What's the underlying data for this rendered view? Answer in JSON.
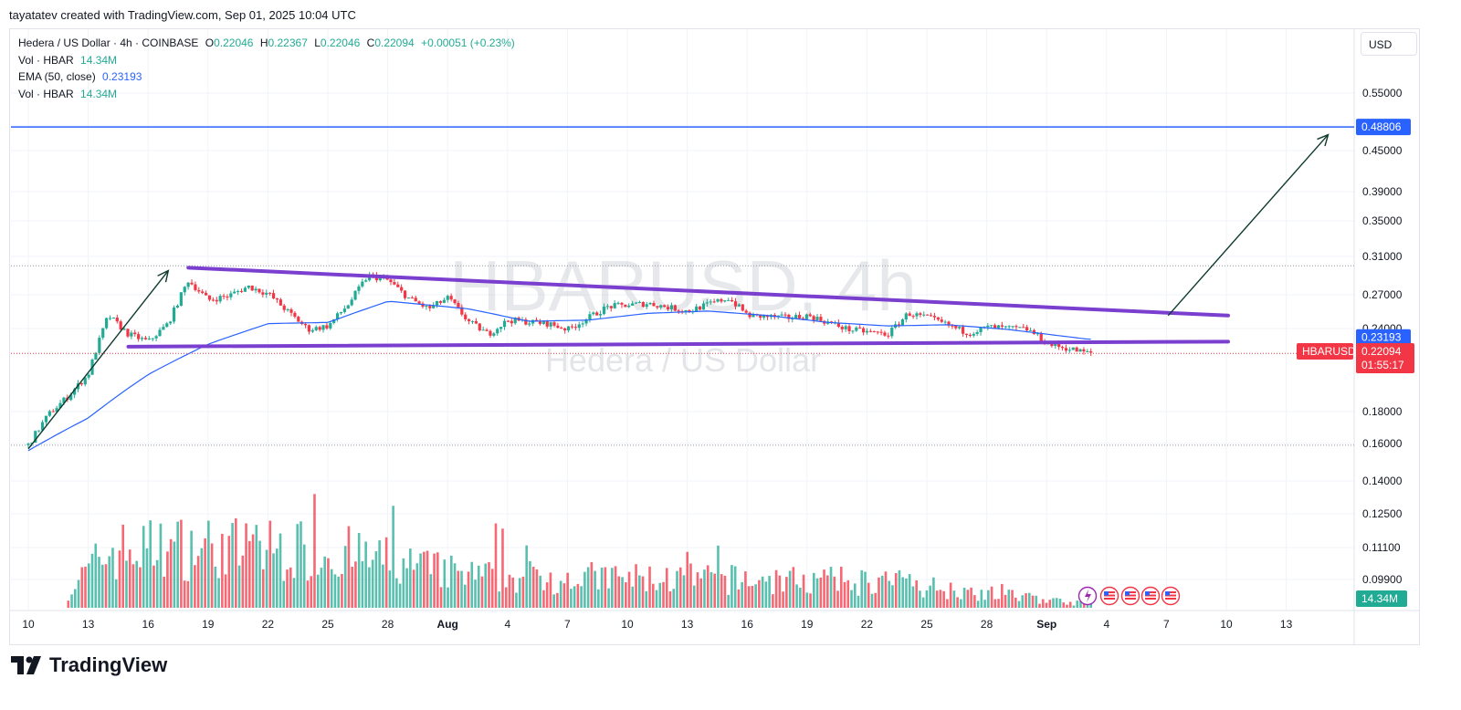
{
  "header": {
    "caption": "tayatatev created with TradingView.com, Sep 01, 2025 10:04 UTC"
  },
  "legend": {
    "symbol": "Hedera / US Dollar · 4h · COINBASE",
    "o_label": "O",
    "o_value": "0.22046",
    "h_label": "H",
    "h_value": "0.22367",
    "l_label": "L",
    "l_value": "0.22046",
    "c_label": "C",
    "c_value": "0.22094",
    "change": "+0.00051 (+0.23%)",
    "vol_label": "Vol · HBAR",
    "vol_value": "14.34M",
    "ema_label": "EMA (50, close)",
    "ema_value": "0.23193",
    "vol2_label": "Vol · HBAR",
    "vol2_value": "14.34M"
  },
  "currency": "USD",
  "watermark": {
    "symbol": "HBARUSD, 4h",
    "name": "Hedera / US Dollar"
  },
  "footer": {
    "brand": "TradingView"
  },
  "price_axis": {
    "ticks": [
      "0.55000",
      "0.45000",
      "0.39000",
      "0.35000",
      "0.31000",
      "0.27000",
      "0.24000",
      "0.18000",
      "0.16000",
      "0.14000",
      "0.12500",
      "0.11100",
      "0.09900"
    ],
    "target_label": "0.48806",
    "ema_label": "0.23193",
    "last_symbol": "HBARUSD",
    "last_price": "0.22094",
    "countdown": "01:55:17",
    "volume_label": "14.34M"
  },
  "time_axis": {
    "labels": [
      "10",
      "13",
      "16",
      "19",
      "22",
      "25",
      "28",
      "Aug",
      "4",
      "7",
      "10",
      "13",
      "16",
      "19",
      "22",
      "25",
      "28",
      "Sep",
      "4",
      "7",
      "10",
      "13"
    ]
  },
  "colors": {
    "up": "#22ab94",
    "down": "#f23645",
    "ema": "#2962ff",
    "channel": "#7b3fd0",
    "target_line": "#2962ff",
    "arrow": "#0d3b2e"
  },
  "chart_data": {
    "type": "candlestick",
    "title": "Hedera / US Dollar · 4h · COINBASE",
    "scale": "log",
    "ylim": [
      0.155,
      0.6
    ],
    "timeframe": "4h",
    "date_range": [
      "2025-07-10",
      "2025-09-01"
    ],
    "last": {
      "open": 0.22046,
      "high": 0.22367,
      "low": 0.22046,
      "close": 0.22094,
      "change": 0.00051,
      "change_pct": 0.23
    },
    "ema50_last": 0.23193,
    "volume_last": "14.34M",
    "price_path_keypoints": [
      {
        "date": "2025-07-10",
        "close": 0.16
      },
      {
        "date": "2025-07-11",
        "close": 0.178
      },
      {
        "date": "2025-07-12",
        "close": 0.19
      },
      {
        "date": "2025-07-13",
        "close": 0.205
      },
      {
        "date": "2025-07-14",
        "close": 0.252
      },
      {
        "date": "2025-07-15",
        "close": 0.236
      },
      {
        "date": "2025-07-16",
        "close": 0.23
      },
      {
        "date": "2025-07-17",
        "close": 0.245
      },
      {
        "date": "2025-07-18",
        "close": 0.285
      },
      {
        "date": "2025-07-19",
        "close": 0.266
      },
      {
        "date": "2025-07-20",
        "close": 0.27
      },
      {
        "date": "2025-07-21",
        "close": 0.279
      },
      {
        "date": "2025-07-22",
        "close": 0.272
      },
      {
        "date": "2025-07-23",
        "close": 0.255
      },
      {
        "date": "2025-07-24",
        "close": 0.24
      },
      {
        "date": "2025-07-25",
        "close": 0.243
      },
      {
        "date": "2025-07-26",
        "close": 0.262
      },
      {
        "date": "2025-07-27",
        "close": 0.29
      },
      {
        "date": "2025-07-28",
        "close": 0.285
      },
      {
        "date": "2025-07-29",
        "close": 0.268
      },
      {
        "date": "2025-07-30",
        "close": 0.258
      },
      {
        "date": "2025-07-31",
        "close": 0.268
      },
      {
        "date": "2025-08-01",
        "close": 0.247
      },
      {
        "date": "2025-08-02",
        "close": 0.236
      },
      {
        "date": "2025-08-03",
        "close": 0.248
      },
      {
        "date": "2025-08-05",
        "close": 0.245
      },
      {
        "date": "2025-08-06",
        "close": 0.24
      },
      {
        "date": "2025-08-08",
        "close": 0.26
      },
      {
        "date": "2025-08-10",
        "close": 0.263
      },
      {
        "date": "2025-08-12",
        "close": 0.256
      },
      {
        "date": "2025-08-13",
        "close": 0.262
      },
      {
        "date": "2025-08-14",
        "close": 0.268
      },
      {
        "date": "2025-08-15",
        "close": 0.252
      },
      {
        "date": "2025-08-17",
        "close": 0.25
      },
      {
        "date": "2025-08-18",
        "close": 0.252
      },
      {
        "date": "2025-08-20",
        "close": 0.24
      },
      {
        "date": "2025-08-21",
        "close": 0.238
      },
      {
        "date": "2025-08-22",
        "close": 0.236
      },
      {
        "date": "2025-08-23",
        "close": 0.254
      },
      {
        "date": "2025-08-24",
        "close": 0.25
      },
      {
        "date": "2025-08-26",
        "close": 0.237
      },
      {
        "date": "2025-08-27",
        "close": 0.242
      },
      {
        "date": "2025-08-29",
        "close": 0.24
      },
      {
        "date": "2025-08-30",
        "close": 0.228
      },
      {
        "date": "2025-09-01",
        "close": 0.22094
      }
    ],
    "ema50_path_keypoints": [
      {
        "date": "2025-07-10",
        "value": 0.157
      },
      {
        "date": "2025-07-13",
        "value": 0.176
      },
      {
        "date": "2025-07-16",
        "value": 0.205
      },
      {
        "date": "2025-07-19",
        "value": 0.228
      },
      {
        "date": "2025-07-22",
        "value": 0.245
      },
      {
        "date": "2025-07-25",
        "value": 0.246
      },
      {
        "date": "2025-07-28",
        "value": 0.265
      },
      {
        "date": "2025-08-01",
        "value": 0.258
      },
      {
        "date": "2025-08-04",
        "value": 0.247
      },
      {
        "date": "2025-08-07",
        "value": 0.248
      },
      {
        "date": "2025-08-10",
        "value": 0.254
      },
      {
        "date": "2025-08-13",
        "value": 0.256
      },
      {
        "date": "2025-08-16",
        "value": 0.252
      },
      {
        "date": "2025-08-19",
        "value": 0.246
      },
      {
        "date": "2025-08-22",
        "value": 0.243
      },
      {
        "date": "2025-08-25",
        "value": 0.244
      },
      {
        "date": "2025-08-28",
        "value": 0.24
      },
      {
        "date": "2025-09-01",
        "value": 0.23193
      }
    ],
    "drawings": {
      "channel_upper": [
        {
          "date": "2025-07-18",
          "price": 0.298
        },
        {
          "date": "2025-09-08",
          "price": 0.252
        }
      ],
      "channel_lower": [
        {
          "date": "2025-07-15",
          "price": 0.226
        },
        {
          "date": "2025-09-08",
          "price": 0.23
        }
      ],
      "horizontal_target": 0.48806,
      "arrow_left": [
        {
          "date": "2025-07-10",
          "price": 0.158
        },
        {
          "date": "2025-07-17",
          "price": 0.295
        }
      ],
      "arrow_right": [
        {
          "date": "2025-09-05",
          "price": 0.252
        },
        {
          "date": "2025-09-13",
          "price": 0.475
        }
      ],
      "dotted_levels": [
        0.3,
        0.2207,
        0.16
      ]
    },
    "volume_path_keypoints": [
      {
        "date": "2025-07-12",
        "volume": 0.14
      },
      {
        "date": "2025-07-14",
        "volume": 0.48
      },
      {
        "date": "2025-07-18",
        "volume": 0.52
      },
      {
        "date": "2025-07-25",
        "volume": 0.48
      },
      {
        "date": "2025-08-01",
        "volume": 0.27
      },
      {
        "date": "2025-08-22",
        "volume": 0.22
      },
      {
        "date": "2025-09-01",
        "volume": 0.03
      }
    ]
  }
}
